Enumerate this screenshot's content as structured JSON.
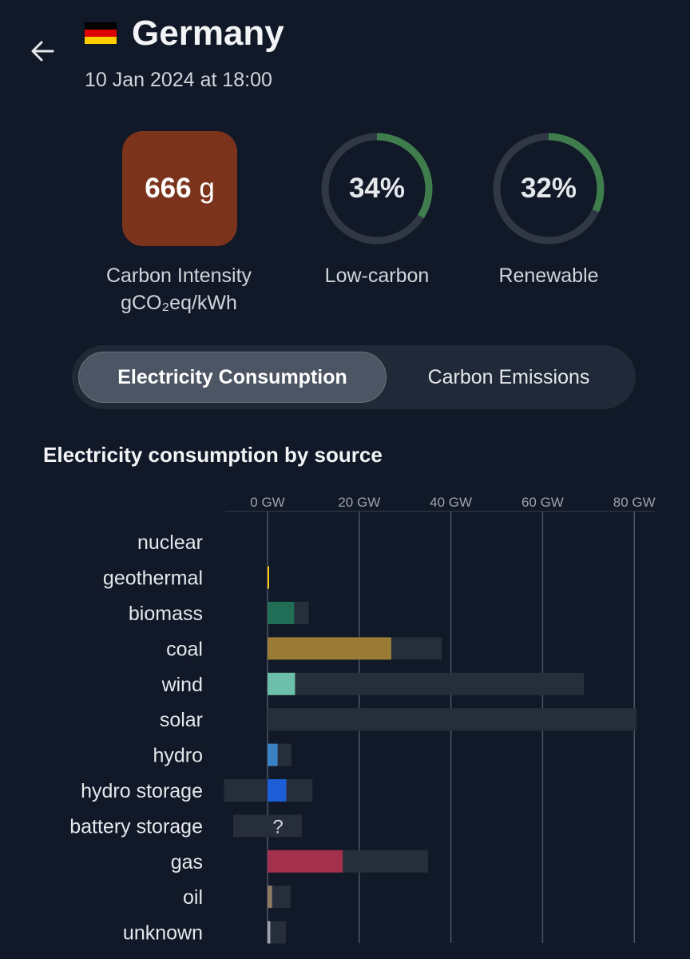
{
  "header": {
    "back_icon": "arrow-left-icon",
    "flag_icon": "germany-flag-icon",
    "title": "Germany",
    "date": "10 Jan 2024 at 18:00"
  },
  "metrics": {
    "carbon_intensity": {
      "value_number": "666",
      "value_unit": "g",
      "label_line1": "Carbon Intensity",
      "label_line2": "gCO₂eq/kWh",
      "color": "#7c331b"
    },
    "low_carbon": {
      "value": "34%",
      "fraction": 0.34,
      "label": "Low-carbon",
      "color": "#3f7d4d"
    },
    "renewable": {
      "value": "32%",
      "fraction": 0.32,
      "label": "Renewable",
      "color": "#3f7d4d"
    }
  },
  "toggle": {
    "options": [
      "Electricity Consumption",
      "Carbon Emissions"
    ],
    "selected": "Electricity Consumption"
  },
  "section_title": "Electricity consumption by source",
  "chart_data": {
    "type": "bar",
    "orientation": "horizontal",
    "x_ticks": [
      "0 GW",
      "20 GW",
      "40 GW",
      "60 GW",
      "80 GW"
    ],
    "xlim": [
      0,
      80
    ],
    "unit": "GW",
    "grid": true,
    "categories": [
      "nuclear",
      "geothermal",
      "biomass",
      "coal",
      "wind",
      "solar",
      "hydro",
      "hydro storage",
      "battery storage",
      "gas",
      "oil",
      "unknown"
    ],
    "series": [
      {
        "values": [
          0,
          0.2,
          5.8,
          27.0,
          6.0,
          0,
          2.2,
          4.1,
          null,
          16.4,
          1.0,
          0.6
        ]
      }
    ],
    "capacity": [
      0,
      0.2,
      9.0,
      38.0,
      69.0,
      80.5,
      5.2,
      9.8,
      7.5,
      35.0,
      5.0,
      4.0
    ],
    "negative_capacity": [
      0,
      0,
      0,
      0,
      0,
      0,
      0,
      -9.5,
      -7.5,
      0,
      0,
      0
    ],
    "unknown_marker": {
      "category": "battery storage",
      "text": "?"
    },
    "colors": [
      "#a3e635",
      "#facc15",
      "#1f6e55",
      "#9a7c36",
      "#6cbfa8",
      "#f2c94c",
      "#3b82c4",
      "#1d5ed6",
      "#555555",
      "#a3314e",
      "#8c7a63",
      "#9ca3af"
    ],
    "capacity_color": "#272e3b"
  }
}
